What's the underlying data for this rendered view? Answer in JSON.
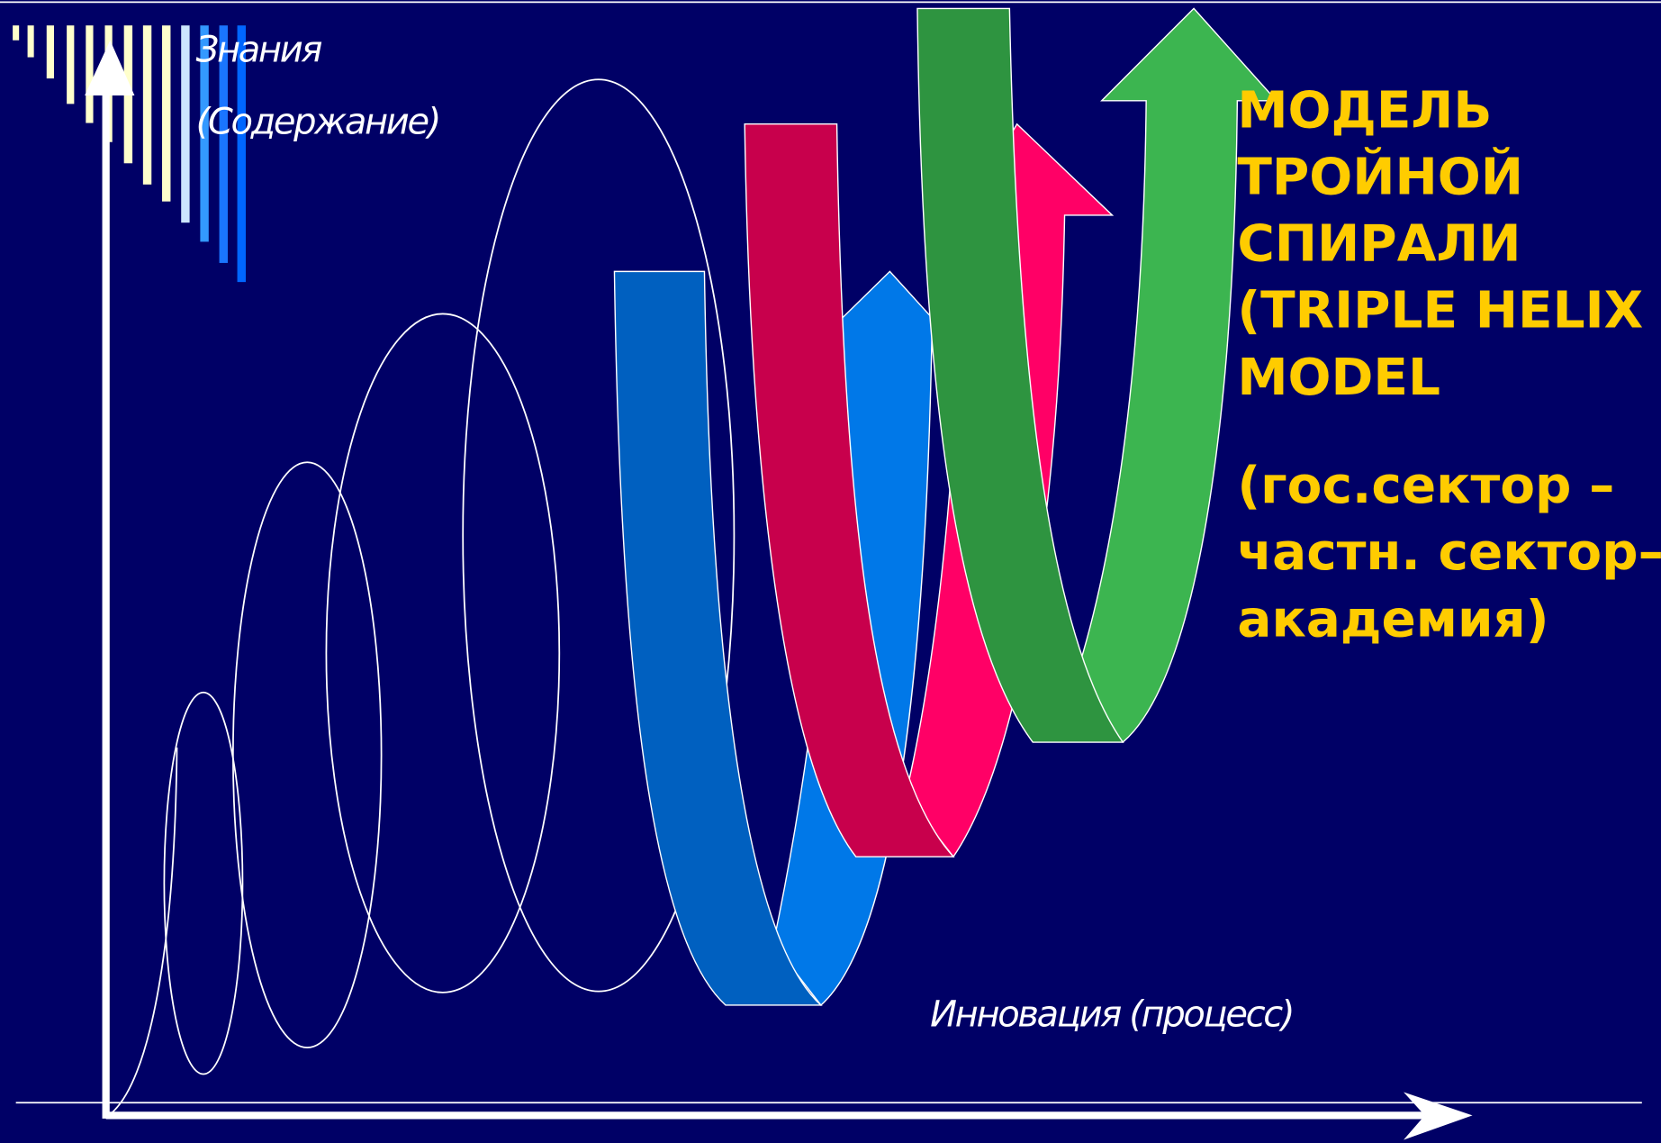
{
  "axes": {
    "y_label": [
      "Знания",
      "(Содержание)"
    ],
    "x_label": "Инновация (процесс)"
  },
  "title": {
    "lines": [
      "МОДЕЛЬ",
      "ТРОЙНОЙ",
      "СПИРАЛИ",
      "(TRIPLE HELIX",
      "MODEL"
    ]
  },
  "subtitle": {
    "lines": [
      "(гос.сектор –",
      "частн. сектор–",
      "академия)"
    ]
  }
}
